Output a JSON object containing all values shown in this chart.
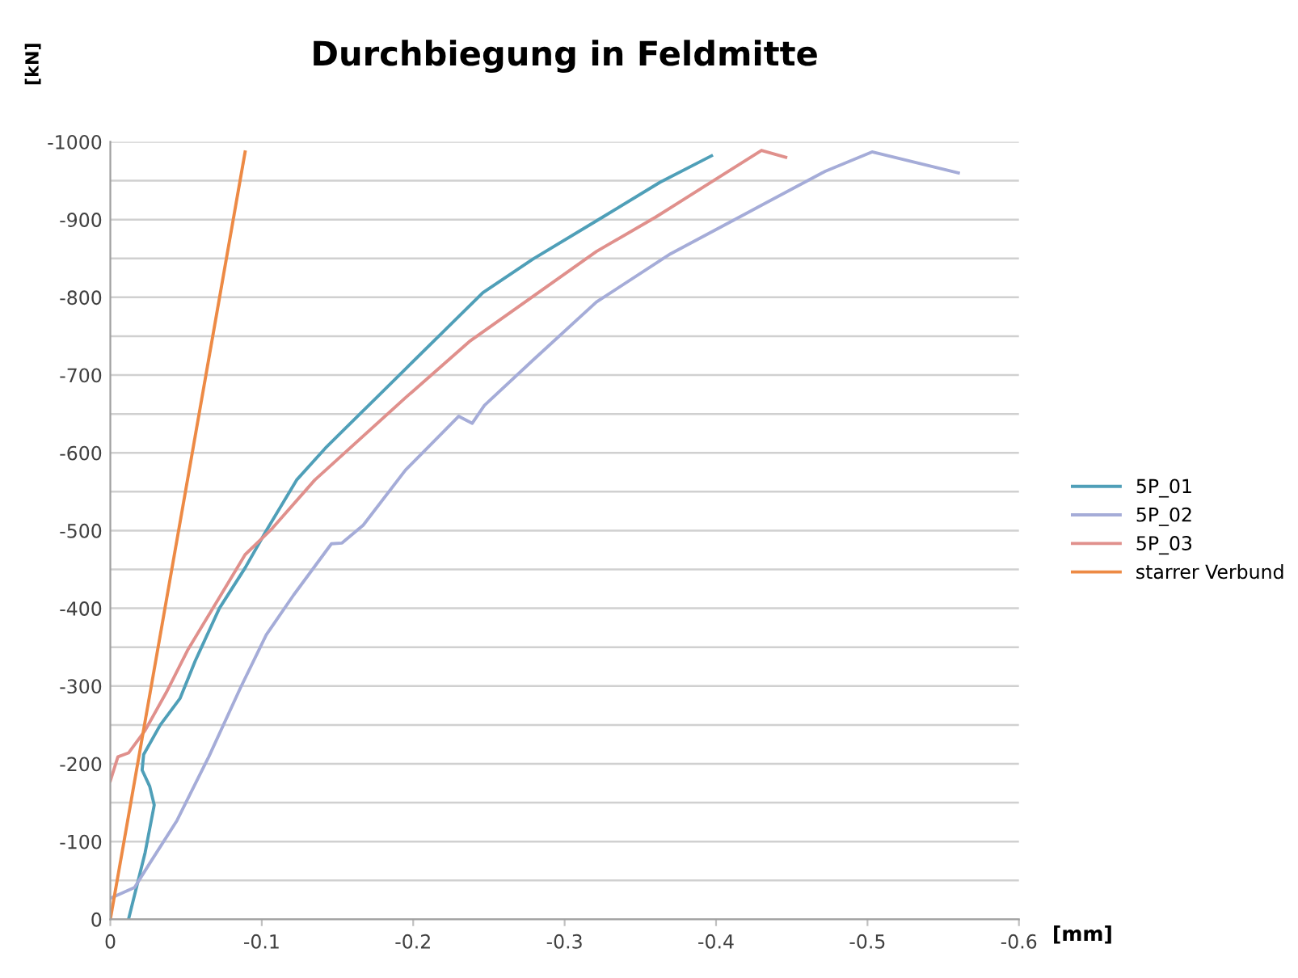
{
  "chart_data": {
    "type": "line",
    "title": "Durchbiegung in Feldmitte",
    "xlabel": "[mm]",
    "ylabel": "[kN]",
    "xlim": [
      0,
      -0.6
    ],
    "xticks": [
      0,
      -0.1,
      -0.2,
      -0.3,
      -0.4,
      -0.5,
      -0.6
    ],
    "ylim": [
      0,
      -1000
    ],
    "yticks": [
      0,
      {
        "value": -50,
        "label": null
      },
      -100,
      {
        "value": -150,
        "label": null
      },
      -200,
      {
        "value": -250,
        "label": null
      },
      -300,
      {
        "value": -350,
        "label": null
      },
      -400,
      {
        "value": -450,
        "label": null
      },
      -500,
      {
        "value": -550,
        "label": null
      },
      -600,
      {
        "value": -650,
        "label": null
      },
      -700,
      {
        "value": -750,
        "label": null
      },
      -800,
      {
        "value": -850,
        "label": null
      },
      -900,
      {
        "value": -950,
        "label": null
      },
      -1000
    ],
    "grid": "y",
    "legend": "right",
    "marker": "none",
    "line_style": "solid",
    "series": [
      {
        "name": "5P_01",
        "color": "#4f9fb8",
        "x": [
          -0.012,
          -0.023,
          -0.029,
          -0.026,
          -0.021,
          -0.022,
          -0.033,
          -0.046,
          -0.056,
          -0.072,
          -0.089,
          -0.103,
          -0.123,
          -0.142,
          -0.17,
          -0.195,
          -0.246,
          -0.279,
          -0.325,
          -0.363,
          -0.397
        ],
        "values": [
          0,
          -86,
          -147,
          -171,
          -192,
          -212,
          -250,
          -284,
          -332,
          -400,
          -452,
          -500,
          -565,
          -606,
          -660,
          -708,
          -806,
          -849,
          -903,
          -948,
          -982
        ]
      },
      {
        "name": "5P_02",
        "color": "#a5acd8",
        "x": [
          0,
          -0.016,
          -0.026,
          -0.044,
          -0.065,
          -0.086,
          -0.103,
          -0.121,
          -0.146,
          -0.153,
          -0.167,
          -0.195,
          -0.23,
          -0.239,
          -0.247,
          -0.279,
          -0.321,
          -0.37,
          -0.419,
          -0.472,
          -0.503,
          -0.56
        ],
        "values": [
          -27,
          -41,
          -72,
          -127,
          -209,
          -298,
          -366,
          -417,
          -483,
          -484,
          -507,
          -578,
          -647,
          -638,
          -661,
          -719,
          -794,
          -856,
          -907,
          -962,
          -987,
          -960
        ]
      },
      {
        "name": "5P_03",
        "color": "#e0908c",
        "x": [
          0,
          -0.005,
          -0.012,
          -0.023,
          -0.037,
          -0.051,
          -0.072,
          -0.089,
          -0.107,
          -0.135,
          -0.195,
          -0.237,
          -0.279,
          -0.321,
          -0.36,
          -0.391,
          -0.43,
          -0.446
        ],
        "values": [
          -178,
          -209,
          -214,
          -243,
          -292,
          -346,
          -414,
          -469,
          -503,
          -565,
          -671,
          -743,
          -801,
          -859,
          -903,
          -941,
          -989,
          -980
        ]
      },
      {
        "name": "starrer Verbund",
        "color": "#ed8a45",
        "x": [
          0,
          -0.089
        ],
        "values": [
          0,
          -987
        ]
      }
    ]
  }
}
